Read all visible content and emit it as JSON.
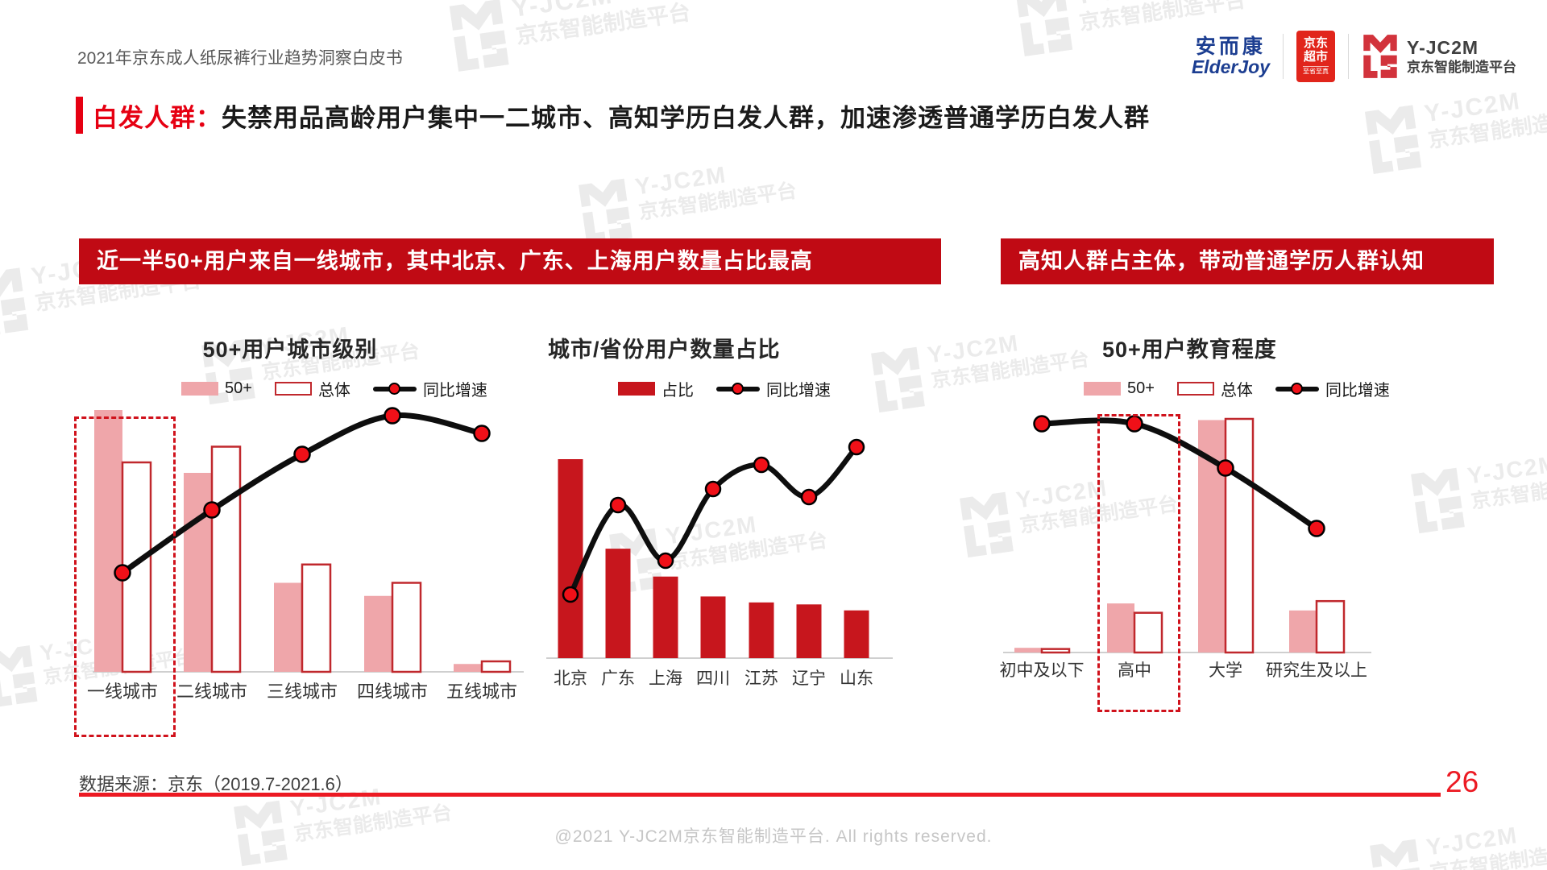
{
  "page": {
    "header_title": "2021年京东成人纸尿裤行业趋势洞察白皮书",
    "page_number": "26",
    "source_note": "数据来源：京东（2019.7-2021.6）",
    "copyright": "@2021 Y-JC2M京东智能制造平台. All rights reserved."
  },
  "logos": {
    "elderjoy_cn": "安而康",
    "elderjoy_en": "ElderJoy",
    "jd_market": "京东超市",
    "jd_sub": "至省至真",
    "jc2m_name": "Y-JC2M",
    "jc2m_sub": "京东智能制造平台"
  },
  "title": {
    "highlight": "白发人群：",
    "rest": "失禁用品高龄用户集中一二城市、高知学历白发人群，加速渗透普通学历白发人群"
  },
  "banners": [
    {
      "text": "近一半50+用户来自一线城市，其中北京、广东、上海用户数量占比最高"
    },
    {
      "text": "高知人群占主体，带动普通学历人群认知"
    }
  ],
  "watermark": {
    "line1": "Y-JC2M",
    "line2": "京东智能制造平台"
  },
  "colors": {
    "banner_red": "#c00a14",
    "bar_red": "#c7161d",
    "bar_pink": "#efa6aa",
    "bar_outline": "#c0282d",
    "line_black": "#0e0e0e",
    "dot_red": "#f01018",
    "accent_red": "#e60012",
    "dash_red": "#d0121c"
  },
  "chart_data": [
    {
      "id": "city_tier",
      "type": "bar",
      "title": "50+用户城市级别",
      "categories": [
        "一线城市",
        "二线城市",
        "三线城市",
        "四线城市",
        "五线城市"
      ],
      "series": [
        {
          "name": "50+",
          "style": "bar-pink",
          "values": [
            100,
            76,
            34,
            29,
            3
          ]
        },
        {
          "name": "总体",
          "style": "bar-outline",
          "values": [
            80,
            86,
            41,
            34,
            4
          ]
        },
        {
          "name": "同比增速",
          "style": "line",
          "values": [
            38,
            62,
            83,
            98,
            91
          ]
        }
      ],
      "value_scale": "relative index 0-100, estimated from bar heights (no numeric axis shown)",
      "highlight_category": "一线城市",
      "legend_position": "top"
    },
    {
      "id": "city_share",
      "type": "bar",
      "title": "城市/省份用户数量占比",
      "categories": [
        "北京",
        "广东",
        "上海",
        "四川",
        "江苏",
        "辽宁",
        "山东"
      ],
      "series": [
        {
          "name": "占比",
          "style": "bar-red",
          "values": [
            100,
            55,
            41,
            31,
            28,
            27,
            24
          ]
        },
        {
          "name": "同比增速",
          "style": "line",
          "values": [
            32,
            77,
            49,
            85,
            97,
            81,
            106
          ]
        }
      ],
      "value_scale": "relative index 0-100, estimated from bar heights (no numeric axis shown)",
      "legend_position": "top"
    },
    {
      "id": "education",
      "type": "bar",
      "title": "50+用户教育程度",
      "categories": [
        "初中及以下",
        "高中",
        "大学",
        "研究生及以上"
      ],
      "series": [
        {
          "name": "50+",
          "style": "bar-pink",
          "values": [
            2,
            21,
            99.5,
            18
          ]
        },
        {
          "name": "总体",
          "style": "bar-outline",
          "values": [
            1.5,
            17,
            100,
            22
          ]
        },
        {
          "name": "同比增速",
          "style": "line",
          "values": [
            98,
            98,
            79,
            53
          ]
        }
      ],
      "value_scale": "relative index 0-100, estimated from bar heights (no numeric axis shown)",
      "highlight_category": "高中",
      "legend_position": "top"
    }
  ]
}
